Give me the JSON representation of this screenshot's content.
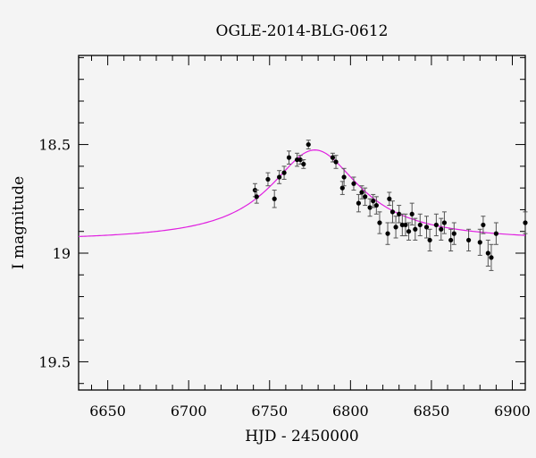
{
  "chart_data": {
    "type": "scatter",
    "title": "OGLE-2014-BLG-0612",
    "xlabel": "HJD - 2450000",
    "ylabel": "I magnitude",
    "xlim": [
      6632,
      6908
    ],
    "ylim": [
      19.63,
      18.09
    ],
    "y_inverted": true,
    "grid": false,
    "x_ticks": [
      6650,
      6700,
      6750,
      6800,
      6850,
      6900
    ],
    "x_tick_labels": [
      "6650",
      "6700",
      "6750",
      "6800",
      "6850",
      "6900"
    ],
    "y_ticks": [
      18.5,
      19,
      19.5
    ],
    "y_tick_labels": [
      "18.5",
      "19",
      "19.5"
    ],
    "colors": {
      "model": "#e020e0",
      "points": "#000000",
      "errorbars": "#555555",
      "background": "#f4f4f4"
    },
    "model": {
      "name": "",
      "baseline": 18.945,
      "peak": 18.525,
      "t0": 6778,
      "tE": 34,
      "x": [
        6632,
        6650,
        6670,
        6690,
        6710,
        6725,
        6740,
        6750,
        6760,
        6768,
        6775,
        6778,
        6785,
        6795,
        6805,
        6815,
        6825,
        6840,
        6855,
        6870,
        6890,
        6908
      ]
    },
    "series": [
      {
        "name": "",
        "points": [
          [
            6741,
            18.71,
            0.03
          ],
          [
            6742,
            18.74,
            0.03
          ],
          [
            6749,
            18.66,
            0.03
          ],
          [
            6753,
            18.75,
            0.04
          ],
          [
            6756,
            18.65,
            0.03
          ],
          [
            6759,
            18.63,
            0.03
          ],
          [
            6762,
            18.56,
            0.03
          ],
          [
            6767,
            18.57,
            0.03
          ],
          [
            6769,
            18.57,
            0.02
          ],
          [
            6771,
            18.59,
            0.02
          ],
          [
            6774,
            18.5,
            0.02
          ],
          [
            6789,
            18.56,
            0.02
          ],
          [
            6791,
            18.58,
            0.03
          ],
          [
            6795,
            18.7,
            0.03
          ],
          [
            6796,
            18.65,
            0.04
          ],
          [
            6802,
            18.68,
            0.03
          ],
          [
            6805,
            18.77,
            0.04
          ],
          [
            6807,
            18.72,
            0.03
          ],
          [
            6809,
            18.74,
            0.04
          ],
          [
            6812,
            18.79,
            0.04
          ],
          [
            6814,
            18.76,
            0.03
          ],
          [
            6816,
            18.78,
            0.04
          ],
          [
            6818,
            18.86,
            0.05
          ],
          [
            6823,
            18.91,
            0.05
          ],
          [
            6824,
            18.75,
            0.03
          ],
          [
            6826,
            18.81,
            0.05
          ],
          [
            6828,
            18.88,
            0.05
          ],
          [
            6830,
            18.82,
            0.04
          ],
          [
            6832,
            18.87,
            0.05
          ],
          [
            6834,
            18.87,
            0.05
          ],
          [
            6836,
            18.9,
            0.04
          ],
          [
            6838,
            18.82,
            0.05
          ],
          [
            6840,
            18.89,
            0.05
          ],
          [
            6843,
            18.87,
            0.05
          ],
          [
            6847,
            18.88,
            0.05
          ],
          [
            6849,
            18.94,
            0.05
          ],
          [
            6853,
            18.87,
            0.05
          ],
          [
            6856,
            18.89,
            0.05
          ],
          [
            6858,
            18.86,
            0.05
          ],
          [
            6862,
            18.94,
            0.05
          ],
          [
            6864,
            18.91,
            0.05
          ],
          [
            6873,
            18.94,
            0.05
          ],
          [
            6880,
            18.95,
            0.06
          ],
          [
            6882,
            18.87,
            0.04
          ],
          [
            6885,
            19.0,
            0.06
          ],
          [
            6887,
            19.02,
            0.06
          ],
          [
            6890,
            18.91,
            0.05
          ],
          [
            6908,
            18.86,
            0.05
          ]
        ]
      }
    ]
  }
}
